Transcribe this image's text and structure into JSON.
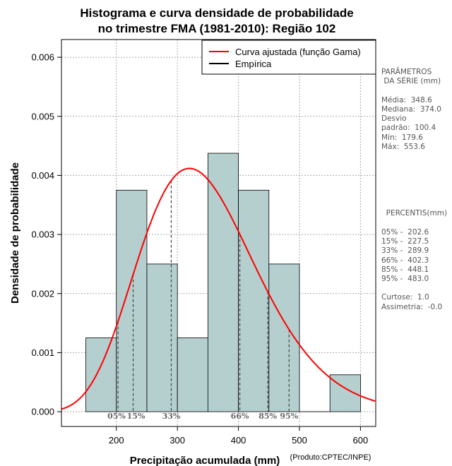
{
  "chart_data": {
    "type": "histogram",
    "title_line1": "Histograma e curva densidade de probabilidade",
    "title_line2": "no trimestre FMA (1981-2010): Região 102",
    "xlabel": "Precipitação acumulada (mm)",
    "ylabel": "Densidade de probabilidade",
    "credit": "(Produto:CPTEC/INPE)",
    "xlim": [
      110,
      625
    ],
    "ylim": [
      -0.00025,
      0.0063
    ],
    "x_ticks": [
      200,
      300,
      400,
      500,
      600
    ],
    "y_ticks": [
      0.0,
      0.001,
      0.002,
      0.003,
      0.004,
      0.005,
      0.006
    ],
    "y_tick_labels": [
      "0.000",
      "0.001",
      "0.002",
      "0.003",
      "0.004",
      "0.005",
      "0.006"
    ],
    "bins": [
      {
        "start": 150,
        "end": 200,
        "density": 0.00125
      },
      {
        "start": 200,
        "end": 250,
        "density": 0.00375
      },
      {
        "start": 250,
        "end": 300,
        "density": 0.0025
      },
      {
        "start": 300,
        "end": 350,
        "density": 0.00125
      },
      {
        "start": 350,
        "end": 400,
        "density": 0.004375
      },
      {
        "start": 400,
        "end": 450,
        "density": 0.00375
      },
      {
        "start": 450,
        "end": 500,
        "density": 0.0025
      },
      {
        "start": 500,
        "end": 550,
        "density": 0.0
      },
      {
        "start": 550,
        "end": 600,
        "density": 0.000625
      }
    ],
    "gamma_fit": {
      "mean": 348.6,
      "sd": 100.4
    },
    "legend": [
      {
        "label": "Curva ajustada (função Gama)",
        "color": "#ff0000"
      },
      {
        "label": "Empírica",
        "color": "#000000"
      }
    ],
    "percentile_markers": [
      {
        "label": "05%",
        "value": 202.6
      },
      {
        "label": "15%",
        "value": 227.5
      },
      {
        "label": "33%",
        "value": 289.9
      },
      {
        "label": "66%",
        "value": 402.3
      },
      {
        "label": "85%",
        "value": 448.1
      },
      {
        "label": "95%",
        "value": 483.0
      }
    ],
    "colors": {
      "bar_fill": "#b5cfcf",
      "curve": "#ff0000",
      "grid": "#aaaaaa"
    }
  },
  "side_panel": {
    "params_title_1": "PARÂMETROS",
    "params_title_2": " DA SÉRIE (mm)",
    "media": "Média:  348.6",
    "mediana": "Mediana:  374.0",
    "desvio_1": "Desvio",
    "desvio_2": "padrão:  100.4",
    "min": "Mín:  179.6",
    "max": "Máx:  553.6",
    "percentis_title": "  PERCENTIS(mm)",
    "p05": "05% -  202.6",
    "p15": "15% -  227.5",
    "p33": "33% -  289.9",
    "p66": "66% -  402.3",
    "p85": "85% -  448.1",
    "p95": "95% -  483.0",
    "curtose": "Curtose:  1.0",
    "assimetria": "Assimetria:  -0.0"
  }
}
